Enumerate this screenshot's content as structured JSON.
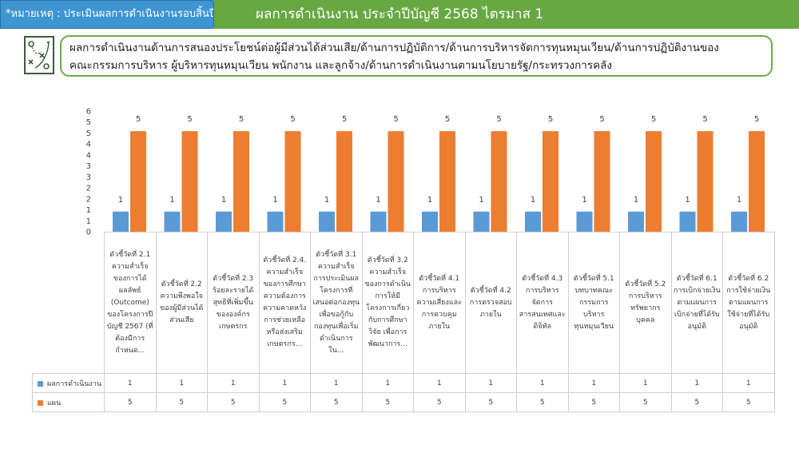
{
  "header": {
    "note": "*หมายเหตุ : ประเมินผลการดำเนินงานรอบสิ้นปี",
    "title": "ผลการดำเนินงาน ประจำปีบัญชี 2568 ไตรมาส 1"
  },
  "criteria": {
    "line1": "ผลการดำเนินงานด้านการสนองประโยชน์ต่อผู้มีส่วนได้ส่วนเสีย/ด้านการปฏิบัติการ/ด้านการบริหารจัดการทุนหมุนเวียน/ด้านการปฏิบัติงานของ",
    "line2": "คณะกรรมการบริหาร ผู้บริหารทุนหมุนเวียน พนักงาน และลูกจ้าง/ด้านการดำเนินงานตามนโยบายรัฐ/กระทรวงการคลัง"
  },
  "icons": {
    "criteria": "strategy-board-icon"
  },
  "colors": {
    "header_green": "#67a843",
    "note_blue": "#3e95d2",
    "series_actual": "#5b9bd5",
    "series_plan": "#ed7d31",
    "border_green": "#6aad47"
  },
  "chart_data": {
    "type": "bar",
    "ylim": [
      0,
      6
    ],
    "yticks": [
      "0",
      "1",
      "1",
      "2",
      "2",
      "3",
      "3",
      "4",
      "4",
      "5",
      "5",
      "6"
    ],
    "categories": [
      "ตัวชี้วัดที่ 2.1 ความสำเร็จของการได้ผลลัพธ์ (Outcome) ของโครงการปีบัญชี 2567 (ที่ต้องมีการกำหนด...",
      "ตัวชี้วัดที่ 2.2 ความพึงพอใจของผู้มีส่วนได้ส่วนเสีย",
      "ตัวชี้วัดที่ 2.3 ร้อยละรายได้สุทธิที่เพิ่มขึ้นขององค์กรเกษตรกร",
      "ตัวชี้วัดที่ 2.4. ความสำเร็จของการศึกษาความต้องการ ความคาดหวังการช่วยเหลือหรือส่งเสริมเกษตรกร...",
      "ตัวชี้วัดที่ 3.1 ความสำเร็จการประเมินผลโครงการที่เสนอต่อกองทุนเพื่อขอกู้กับกองทุนเพื่อเริ่มดำเนินการใน...",
      "ตัวชี้วัดที่ 3.2 ความสำเร็จของการดำเนินการให้มีโครงการเกี่ยวกับการศึกษา วิจัย เพื่อการพัฒนาการ...",
      "ตัวชี้วัดที่ 4.1 การบริหารความเสี่ยงและการควบคุมภายใน",
      "ตัวชี้วัดที่ 4.2 การตรวจสอบภายใน",
      "ตัวชี้วัดที่ 4.3 การบริหารจัดการสารสนเทศและดิจิทัล",
      "ตัวชี้วัดที่ 5.1 บทบาทคณะกรรมการบริหารทุนหมุนเวียน",
      "ตัวชี้วัดที่ 5.2 การบริหารทรัพยากรบุคคล",
      "ตัวชี้วัดที่ 6.1 การเบิกจ่ายเงินตามแผนการเบิกจ่ายที่ได้รับอนุมัติ",
      "ตัวชี้วัดที่ 6.2 การใช้จ่ายเงินตามแผนการใช้จ่ายที่ได้รับอนุมัติ"
    ],
    "series": [
      {
        "name": "ผลการดำเนินงาน",
        "color": "#5b9bd5",
        "values": [
          1,
          1,
          1,
          1,
          1,
          1,
          1,
          1,
          1,
          1,
          1,
          1,
          1
        ]
      },
      {
        "name": "แผน",
        "color": "#ed7d31",
        "values": [
          5,
          5,
          5,
          5,
          5,
          5,
          5,
          5,
          5,
          5,
          5,
          5,
          5
        ]
      }
    ],
    "data_labels": true,
    "legend": "table-bottom",
    "grid": false
  }
}
